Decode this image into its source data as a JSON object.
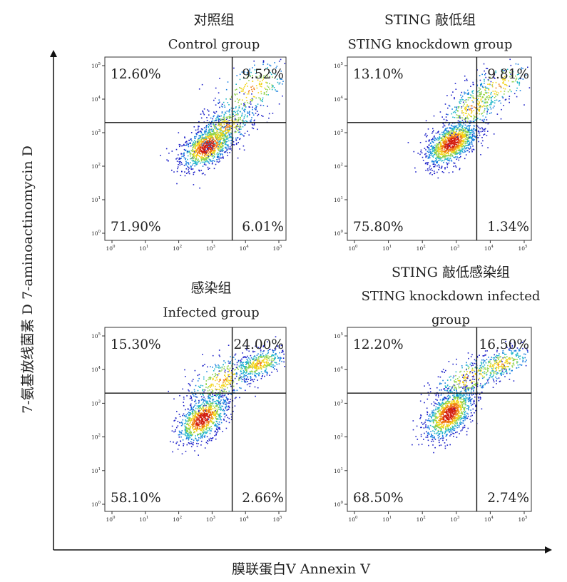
{
  "axes": {
    "x_title": "膜联蛋白Ⅴ  Annexin  Ⅴ",
    "y_title": "7-氨基放线菌素 D   7-aminoactinomycin  D"
  },
  "chart_data": [
    {
      "type": "scatter",
      "subtype": "flow-cytometry-density",
      "title_cn": "对照组",
      "title_en": "Control  group",
      "title_en2": "",
      "x_scale": "log",
      "y_scale": "log",
      "xlim": [
        1,
        100000
      ],
      "ylim": [
        1,
        100000
      ],
      "x_ticks": [
        "10",
        "10",
        "10",
        "10",
        "10",
        "10"
      ],
      "x_tick_exponents": [
        "0",
        "1",
        "2",
        "3",
        "4",
        "5"
      ],
      "y_ticks": [
        "10",
        "10",
        "10",
        "10",
        "10",
        "10"
      ],
      "y_tick_exponents": [
        "0",
        "1",
        "2",
        "3",
        "4",
        "5"
      ],
      "gate_x": 4000,
      "gate_y": 2000,
      "quadrants": {
        "upper_left": "12.60%",
        "upper_right": "9.52%",
        "lower_left": "71.90%",
        "lower_right": "6.01%"
      },
      "populations": [
        {
          "x": 700,
          "y": 400,
          "sx": 0.3,
          "sy": 0.28,
          "n": 1000
        },
        {
          "x": 2500,
          "y": 1500,
          "sx": 0.35,
          "sy": 0.3,
          "n": 420
        },
        {
          "x": 15000,
          "y": 20000,
          "sx": 0.45,
          "sy": 0.4,
          "n": 260
        }
      ]
    },
    {
      "type": "scatter",
      "subtype": "flow-cytometry-density",
      "title_cn": "STING 敲低组",
      "title_en": "STING  knockdown  group",
      "title_en2": "",
      "x_scale": "log",
      "y_scale": "log",
      "xlim": [
        1,
        100000
      ],
      "ylim": [
        1,
        100000
      ],
      "x_ticks": [
        "10",
        "10",
        "10",
        "10",
        "10",
        "10"
      ],
      "x_tick_exponents": [
        "0",
        "1",
        "2",
        "3",
        "4",
        "5"
      ],
      "y_ticks": [
        "10",
        "10",
        "10",
        "10",
        "10",
        "10"
      ],
      "y_tick_exponents": [
        "0",
        "1",
        "2",
        "3",
        "4",
        "5"
      ],
      "gate_x": 4000,
      "gate_y": 2000,
      "quadrants": {
        "upper_left": "13.10%",
        "upper_right": "9.81%",
        "lower_left": "75.80%",
        "lower_right": "1.34%"
      },
      "populations": [
        {
          "x": 700,
          "y": 500,
          "sx": 0.28,
          "sy": 0.28,
          "n": 1200
        },
        {
          "x": 3000,
          "y": 6000,
          "sx": 0.35,
          "sy": 0.35,
          "n": 330
        },
        {
          "x": 15000,
          "y": 25000,
          "sx": 0.4,
          "sy": 0.35,
          "n": 170
        }
      ]
    },
    {
      "type": "scatter",
      "subtype": "flow-cytometry-density",
      "title_cn": "感染组",
      "title_en": "Infected  group",
      "title_en2": "",
      "x_scale": "log",
      "y_scale": "log",
      "xlim": [
        1,
        100000
      ],
      "ylim": [
        1,
        100000
      ],
      "x_ticks": [
        "10",
        "10",
        "10",
        "10",
        "10",
        "10"
      ],
      "x_tick_exponents": [
        "0",
        "1",
        "2",
        "3",
        "4",
        "5"
      ],
      "y_ticks": [
        "10",
        "10",
        "10",
        "10",
        "10",
        "10"
      ],
      "y_tick_exponents": [
        "0",
        "1",
        "2",
        "3",
        "4",
        "5"
      ],
      "gate_x": 4000,
      "gate_y": 2000,
      "quadrants": {
        "upper_left": "15.30%",
        "upper_right": "24.00%",
        "lower_left": "58.10%",
        "lower_right": "2.66%"
      },
      "populations": [
        {
          "x": 500,
          "y": 350,
          "sx": 0.28,
          "sy": 0.3,
          "n": 950
        },
        {
          "x": 2000,
          "y": 5000,
          "sx": 0.4,
          "sy": 0.35,
          "n": 360
        },
        {
          "x": 25000,
          "y": 15000,
          "sx": 0.3,
          "sy": 0.2,
          "n": 420
        }
      ]
    },
    {
      "type": "scatter",
      "subtype": "flow-cytometry-density",
      "title_cn": "STING 敲低感染组",
      "title_en": "STING  knockdown  infected",
      "title_en2": "group",
      "x_scale": "log",
      "y_scale": "log",
      "xlim": [
        1,
        100000
      ],
      "ylim": [
        1,
        100000
      ],
      "x_ticks": [
        "10",
        "10",
        "10",
        "10",
        "10",
        "10"
      ],
      "x_tick_exponents": [
        "0",
        "1",
        "2",
        "3",
        "4",
        "5"
      ],
      "y_ticks": [
        "10",
        "10",
        "10",
        "10",
        "10",
        "10"
      ],
      "y_tick_exponents": [
        "0",
        "1",
        "2",
        "3",
        "4",
        "5"
      ],
      "gate_x": 4000,
      "gate_y": 2000,
      "quadrants": {
        "upper_left": "12.20%",
        "upper_right": "16.50%",
        "lower_left": "68.50%",
        "lower_right": "2.74%"
      },
      "populations": [
        {
          "x": 600,
          "y": 500,
          "sx": 0.26,
          "sy": 0.32,
          "n": 1100
        },
        {
          "x": 2500,
          "y": 6000,
          "sx": 0.4,
          "sy": 0.3,
          "n": 280
        },
        {
          "x": 20000,
          "y": 15000,
          "sx": 0.35,
          "sy": 0.22,
          "n": 300
        }
      ]
    }
  ]
}
